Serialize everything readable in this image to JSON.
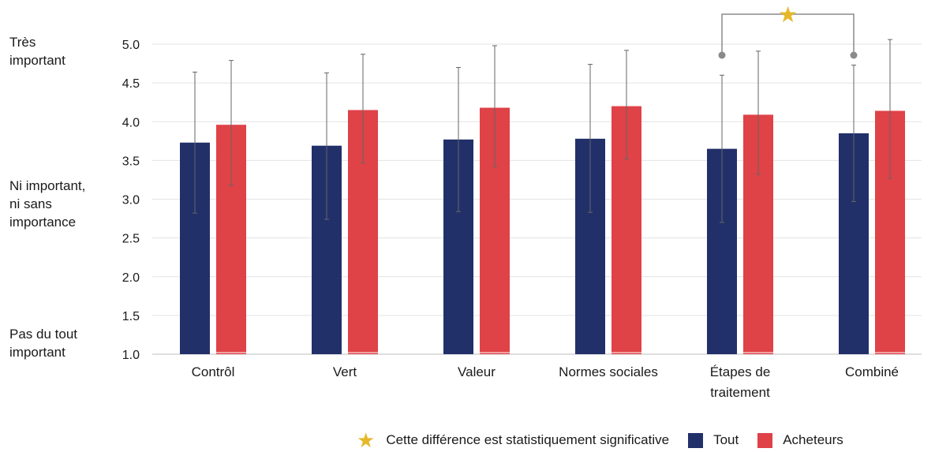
{
  "chart_data": {
    "type": "bar",
    "categories": [
      "Contrôl",
      "Vert",
      "Valeur",
      "Normes sociales",
      "Étapes de traitement",
      "Combiné"
    ],
    "series": [
      {
        "name": "Tout",
        "color": "#22306a",
        "values": [
          3.73,
          3.69,
          3.77,
          3.78,
          3.65,
          3.85
        ],
        "error_low": [
          2.82,
          2.74,
          2.84,
          2.83,
          2.7,
          2.97
        ],
        "error_high": [
          4.64,
          4.63,
          4.7,
          4.74,
          4.6,
          4.73
        ]
      },
      {
        "name": "Acheteurs",
        "color": "#df4247",
        "values": [
          3.96,
          4.15,
          4.18,
          4.2,
          4.09,
          4.14
        ],
        "error_low": [
          3.18,
          3.47,
          3.42,
          3.52,
          3.32,
          3.27
        ],
        "error_high": [
          4.79,
          4.87,
          4.98,
          4.92,
          4.91,
          5.06
        ]
      }
    ],
    "yticks": [
      "1.0",
      "1.5",
      "2.0",
      "2.5",
      "3.0",
      "3.5",
      "4.0",
      "4.5",
      "5.0"
    ],
    "ylim": [
      1.0,
      5.0
    ],
    "grid": true,
    "ylabels_text": [
      {
        "value": 5.0,
        "text": "Très\nimportant"
      },
      {
        "value": 3.0,
        "text": "Ni important,\nni sans\nimportance"
      },
      {
        "value": 1.0,
        "text": "Pas du tout\nimportant"
      }
    ],
    "significance": {
      "between": "Étapes de traitement vs Combiné (Tout)",
      "marker": "star",
      "color": "#e6b829"
    },
    "legend_position": "bottom-right"
  },
  "legend": {
    "significance_label": "Cette différence est statistiquement significative",
    "items": [
      {
        "label": "Tout",
        "color": "#22306a"
      },
      {
        "label": "Acheteurs",
        "color": "#df4247"
      }
    ]
  }
}
